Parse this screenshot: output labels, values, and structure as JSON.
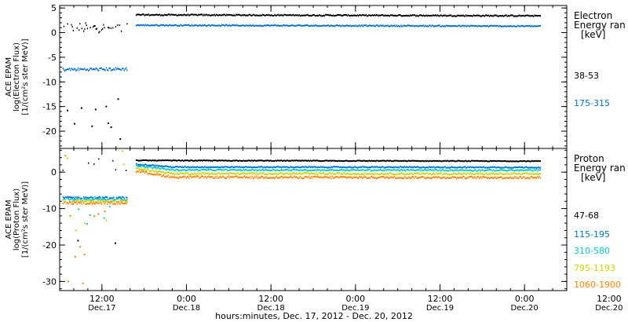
{
  "chart_data": [
    {
      "type": "scatter",
      "ylabel_lines": [
        "ACE EPAM",
        "log(Electron Flux)",
        "[1/(cm²s ster MeV)]"
      ],
      "ylim": [
        -23.5,
        5.5
      ],
      "yticks": [
        5,
        0,
        -5,
        -10,
        -15,
        -20
      ],
      "legend_title": [
        "Electron",
        "Energy ran",
        "[keV]"
      ],
      "series": [
        {
          "name": "38-53",
          "color": "#000000",
          "segments": [
            {
              "x": [
                -5.6,
                3.5
              ],
              "y": [
                1.0,
                0.9
              ],
              "noise": 1.0,
              "density": 0.55
            },
            {
              "x": [
                4.8,
                62.3
              ],
              "y": [
                3.6,
                3.4
              ],
              "noise": 0.12,
              "density": 1
            }
          ],
          "scatter": [
            [
              -3,
              -15.3
            ],
            [
              -1,
              -15.6
            ],
            [
              0.5,
              -15.0
            ],
            [
              2.2,
              -13.5
            ],
            [
              -4,
              -18.5
            ],
            [
              -1.5,
              -19.0
            ],
            [
              0.8,
              -18.4
            ],
            [
              1.2,
              -19.2
            ],
            [
              2.5,
              -21.6
            ],
            [
              -5,
              -15.8
            ]
          ]
        },
        {
          "name": "175-315",
          "color": "#0070d0",
          "segments": [
            {
              "x": [
                -5.6,
                3.5
              ],
              "y": [
                -7.5,
                -7.4
              ],
              "noise": 0.3,
              "density": 1
            },
            {
              "x": [
                4.8,
                62.3
              ],
              "y": [
                1.5,
                1.3
              ],
              "noise": 0.12,
              "density": 1
            }
          ],
          "scatter": []
        }
      ]
    },
    {
      "type": "scatter",
      "ylabel_lines": [
        "ACE EPAM",
        "log(Proton Flux)",
        "[1/(cm²s ster MeV)]"
      ],
      "ylim": [
        -32.5,
        6.5
      ],
      "yticks": [
        0,
        -10,
        -20,
        -30
      ],
      "legend_title": [
        "Proton",
        "Energy ran",
        "[keV]"
      ],
      "series": [
        {
          "name": "47-68",
          "color": "#000000",
          "segments": [
            {
              "x": [
                -5.6,
                3.5
              ],
              "y": [
                2.0,
                2.0
              ],
              "noise": 2.0,
              "density": 0.1
            },
            {
              "x": [
                4.8,
                62.3
              ],
              "y": [
                3.2,
                3.0
              ],
              "noise": 0.1,
              "density": 1
            }
          ],
          "scatter": [
            [
              -3.5,
              -18.8
            ],
            [
              1.8,
              -19.5
            ]
          ]
        },
        {
          "name": "115-195",
          "color": "#0070d0",
          "segments": [
            {
              "x": [
                -5.6,
                3.5
              ],
              "y": [
                -7.0,
                -7.0
              ],
              "noise": 0.25,
              "density": 0.9
            },
            {
              "x": [
                4.8,
                10.0,
                62.3
              ],
              "y": [
                2.2,
                1.4,
                1.3
              ],
              "noise": 0.15,
              "density": 1
            }
          ],
          "scatter": []
        },
        {
          "name": "310-580",
          "color": "#00c8c8",
          "segments": [
            {
              "x": [
                -5.6,
                3.5
              ],
              "y": [
                -7.5,
                -7.5
              ],
              "noise": 0.25,
              "density": 0.9
            },
            {
              "x": [
                4.8,
                10.0,
                62.3
              ],
              "y": [
                1.8,
                0.6,
                0.5
              ],
              "noise": 0.2,
              "density": 1
            }
          ],
          "scatter": [
            [
              -3.4,
              -10.2
            ],
            [
              -1.8,
              -11.8
            ],
            [
              0.2,
              -12.6
            ],
            [
              -4.2,
              -8.8
            ],
            [
              1.0,
              -9.5
            ],
            [
              -2.2,
              -14.2
            ]
          ]
        },
        {
          "name": "795-1193",
          "color": "#d0d000",
          "segments": [
            {
              "x": [
                -5.6,
                3.5
              ],
              "y": [
                -8.0,
                -8.0
              ],
              "noise": 0.3,
              "density": 0.9
            },
            {
              "x": [
                4.8,
                10.0,
                62.3
              ],
              "y": [
                1.0,
                -0.4,
                -0.5
              ],
              "noise": 0.25,
              "density": 1
            }
          ],
          "scatter": [
            [
              -5.0,
              3.8
            ],
            [
              -2.5,
              -14.1
            ],
            [
              0.5,
              -13.2
            ],
            [
              2.8,
              5.8
            ],
            [
              3.0,
              2.1
            ],
            [
              -3.8,
              -16.0
            ]
          ]
        },
        {
          "name": "1060-1900",
          "color": "#ff7f00",
          "segments": [
            {
              "x": [
                -5.6,
                3.5
              ],
              "y": [
                -8.5,
                -8.5
              ],
              "noise": 0.3,
              "density": 0.9
            },
            {
              "x": [
                4.8,
                10.0,
                62.3
              ],
              "y": [
                0.3,
                -1.4,
                -1.5
              ],
              "noise": 0.3,
              "density": 1
            }
          ],
          "scatter": [
            [
              -5.3,
              4.5
            ],
            [
              -4.6,
              -12.0
            ],
            [
              -3.2,
              -20.5
            ],
            [
              -2.6,
              -22.6
            ],
            [
              -1.2,
              -12.1
            ],
            [
              -0.6,
              -11.5
            ],
            [
              0.3,
              -10.8
            ],
            [
              -3.9,
              -23.2
            ],
            [
              -4.9,
              -30.0
            ],
            [
              -2.8,
              -30.5
            ]
          ]
        }
      ]
    }
  ],
  "x_axis": {
    "xlim": [
      -6,
      66
    ],
    "ticks": [
      {
        "x": 0,
        "time": "12:00",
        "date": "Dec.17"
      },
      {
        "x": 12,
        "time": "0:00",
        "date": "Dec.18"
      },
      {
        "x": 24,
        "time": "12:00",
        "date": "Dec.18"
      },
      {
        "x": 36,
        "time": "0:00",
        "date": "Dec.19"
      },
      {
        "x": 48,
        "time": "12:00",
        "date": "Dec.19"
      },
      {
        "x": 60,
        "time": "0:00",
        "date": "Dec.20"
      },
      {
        "x": 72,
        "time": "12:00",
        "date": "Dec.20"
      }
    ],
    "minor_step": 2,
    "xlabel": "hours:minutes, Dec. 17, 2012 - Dec. 20, 2012"
  }
}
